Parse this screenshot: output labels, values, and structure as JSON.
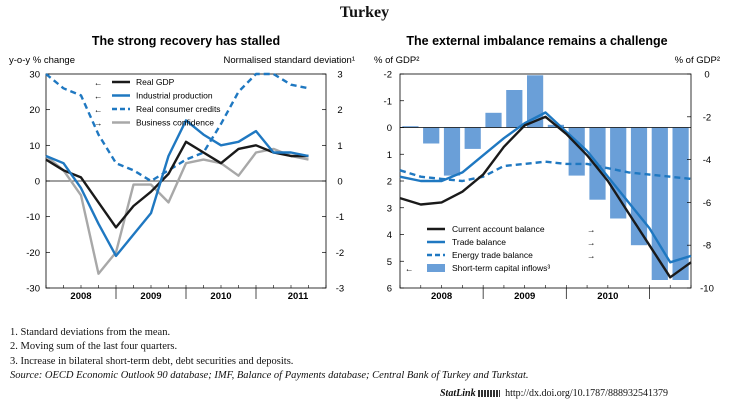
{
  "title": "Turkey",
  "left": {
    "title": "The strong recovery has stalled",
    "left_unit": "y-o-y % change",
    "right_unit": "Normalised standard deviation¹",
    "y_ticks": [
      "30",
      "20",
      "10",
      "0",
      "-10",
      "-20",
      "-30"
    ],
    "y2_ticks": [
      "3",
      "2",
      "1",
      "0",
      "-1",
      "-2",
      "-3"
    ],
    "x_ticks": [
      "2008",
      "2009",
      "2010",
      "2011"
    ],
    "legend": [
      {
        "label": "Real GDP",
        "arrow": "←",
        "style": "solid",
        "color": "#1a1a1a"
      },
      {
        "label": "Industrial production",
        "arrow": "←",
        "style": "solid",
        "color": "#1f78c1"
      },
      {
        "label": "Real consumer credits",
        "arrow": "←",
        "style": "dashed",
        "color": "#1f78c1"
      },
      {
        "label": "Business confidence",
        "arrow": "→",
        "style": "solid",
        "color": "#a8a8a8"
      }
    ]
  },
  "right": {
    "title": "The external imbalance remains a challenge",
    "left_unit": "% of GDP²",
    "right_unit": "% of GDP²",
    "y_ticks": [
      "-2",
      "-1",
      "0",
      "1",
      "2",
      "3",
      "4",
      "5",
      "6"
    ],
    "y2_ticks": [
      "0",
      "-2",
      "-4",
      "-6",
      "-8",
      "-10"
    ],
    "x_ticks": [
      "2008",
      "2009",
      "2010"
    ],
    "legend": [
      {
        "label": "Current account balance",
        "arrow": "→",
        "style": "solid",
        "color": "#1a1a1a"
      },
      {
        "label": "Trade balance",
        "arrow": "→",
        "style": "solid",
        "color": "#1f78c1"
      },
      {
        "label": "Energy trade balance",
        "arrow": "→",
        "style": "dashed",
        "color": "#1f78c1"
      },
      {
        "label": "Short-term capital inflows³",
        "arrow": "←",
        "style": "bar",
        "color": "#6a9fd8"
      }
    ]
  },
  "notes": [
    "1.  Standard deviations from the mean.",
    "2.  Moving sum of the last four quarters.",
    "3.  Increase in bilateral short-term debt, debt securities and deposits."
  ],
  "source": "Source:  OECD Economic Outlook 90 database; IMF, Balance of Payments database; Central Bank of Turkey and Turkstat.",
  "statlink": {
    "brand": "StatLink",
    "url": "http://dx.doi.org/10.1787/888932541379"
  },
  "chart_data": [
    {
      "type": "line",
      "title": "The strong recovery has stalled",
      "ylabel": "y-o-y % change",
      "y2label": "Normalised standard deviation¹",
      "ylim": [
        -30,
        30
      ],
      "y2lim": [
        -3,
        3
      ],
      "x_range": [
        2007.5,
        2011.5
      ],
      "x_ticks": [
        "2008",
        "2009",
        "2010",
        "2011"
      ],
      "series": [
        {
          "name": "Real GDP",
          "axis": "left",
          "color": "#1a1a1a",
          "style": "solid",
          "x": [
            2007.5,
            2007.75,
            2008,
            2008.25,
            2008.5,
            2008.75,
            2009,
            2009.25,
            2009.5,
            2009.75,
            2010,
            2010.25,
            2010.5,
            2010.75,
            2011,
            2011.25
          ],
          "y": [
            6,
            3,
            1,
            -6,
            -13,
            -7,
            -3,
            2,
            11,
            8,
            5,
            9,
            10,
            8,
            7,
            7
          ]
        },
        {
          "name": "Industrial production",
          "axis": "left",
          "color": "#1f78c1",
          "style": "solid",
          "x": [
            2007.5,
            2007.75,
            2008,
            2008.25,
            2008.5,
            2008.75,
            2009,
            2009.25,
            2009.5,
            2009.75,
            2010,
            2010.25,
            2010.5,
            2010.75,
            2011,
            2011.25
          ],
          "y": [
            7,
            5,
            -2,
            -12,
            -21,
            -15,
            -9,
            7,
            17,
            13,
            10,
            11,
            14,
            8,
            8,
            7
          ]
        },
        {
          "name": "Real consumer credits",
          "axis": "right",
          "color": "#1f78c1",
          "style": "dashed",
          "x": [
            2007.5,
            2007.75,
            2008,
            2008.25,
            2008.5,
            2008.75,
            2009,
            2009.25,
            2009.5,
            2009.75,
            2010,
            2010.25,
            2010.5,
            2010.75,
            2011,
            2011.25
          ],
          "y": [
            3.0,
            2.6,
            2.4,
            1.3,
            0.5,
            0.3,
            0.0,
            0.3,
            0.6,
            0.8,
            1.6,
            2.5,
            3.0,
            3.0,
            2.7,
            2.6
          ]
        },
        {
          "name": "Business confidence",
          "axis": "right",
          "color": "#a8a8a8",
          "style": "solid",
          "x": [
            2007.5,
            2007.75,
            2008,
            2008.25,
            2008.5,
            2008.75,
            2009,
            2009.25,
            2009.5,
            2009.75,
            2010,
            2010.25,
            2010.5,
            2010.75,
            2011,
            2011.25
          ],
          "y": [
            0.7,
            0.3,
            -0.4,
            -2.6,
            -2.0,
            -0.1,
            -0.1,
            -0.6,
            0.5,
            0.6,
            0.5,
            0.15,
            0.8,
            0.9,
            0.7,
            0.6
          ]
        }
      ]
    },
    {
      "type": "bar",
      "title": "The external imbalance remains a challenge",
      "ylabel": "% of GDP²",
      "y2label": "% of GDP²",
      "ylim": [
        -2,
        6
      ],
      "y_inverted": true,
      "y2lim": [
        -10,
        0
      ],
      "x_range": [
        2007.5,
        2011.0
      ],
      "x_ticks": [
        "2008",
        "2009",
        "2010"
      ],
      "series": [
        {
          "name": "Short-term capital inflows³",
          "axis": "left",
          "kind": "bar",
          "color": "#6a9fd8",
          "x": [
            2007.625,
            2007.875,
            2008.125,
            2008.375,
            2008.625,
            2008.875,
            2009.125,
            2009.375,
            2009.625,
            2009.875,
            2010.125,
            2010.375,
            2010.625,
            2010.875
          ],
          "y": [
            -0.05,
            0.6,
            1.8,
            0.8,
            -0.55,
            -1.4,
            -1.95,
            -0.1,
            1.8,
            2.7,
            3.4,
            4.4,
            5.7,
            5.7
          ]
        },
        {
          "name": "Current account balance",
          "axis": "right",
          "color": "#1a1a1a",
          "style": "solid",
          "x": [
            2007.5,
            2007.75,
            2008,
            2008.25,
            2008.5,
            2008.75,
            2009,
            2009.25,
            2009.5,
            2009.75,
            2010,
            2010.25,
            2010.5,
            2010.75,
            2011
          ],
          "y": [
            -5.8,
            -6.1,
            -6.0,
            -5.5,
            -4.7,
            -3.4,
            -2.4,
            -2.0,
            -2.8,
            -3.8,
            -5.0,
            -6.5,
            -8.0,
            -9.5,
            -8.8
          ]
        },
        {
          "name": "Trade balance",
          "axis": "right",
          "color": "#1f78c1",
          "style": "solid",
          "x": [
            2007.5,
            2007.75,
            2008,
            2008.25,
            2008.5,
            2008.75,
            2009,
            2009.25,
            2009.5,
            2009.75,
            2010,
            2010.25,
            2010.5,
            2010.75,
            2011
          ],
          "y": [
            -4.8,
            -5.0,
            -5.0,
            -4.6,
            -3.8,
            -3.0,
            -2.3,
            -1.8,
            -2.7,
            -3.6,
            -4.8,
            -6.0,
            -7.2,
            -8.8,
            -8.5
          ]
        },
        {
          "name": "Energy trade balance",
          "axis": "right",
          "color": "#1f78c1",
          "style": "dashed",
          "x": [
            2007.5,
            2007.75,
            2008,
            2008.25,
            2008.5,
            2008.75,
            2009,
            2009.25,
            2009.5,
            2009.75,
            2010,
            2010.25,
            2010.5,
            2010.75,
            2011
          ],
          "y": [
            -4.5,
            -4.8,
            -4.9,
            -5.0,
            -4.8,
            -4.3,
            -4.2,
            -4.1,
            -4.2,
            -4.2,
            -4.4,
            -4.6,
            -4.7,
            -4.8,
            -4.9
          ]
        }
      ]
    }
  ]
}
